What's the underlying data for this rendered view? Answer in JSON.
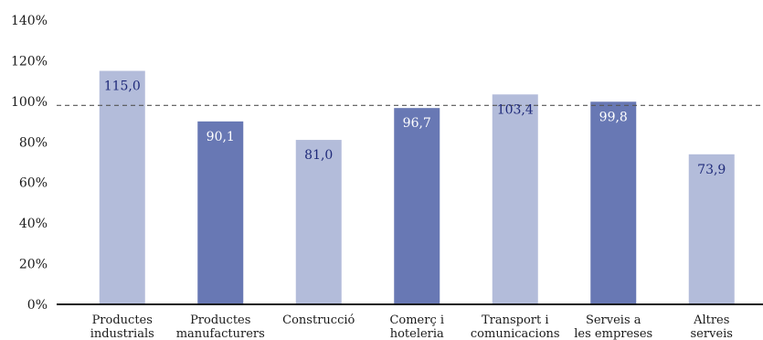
{
  "chart_data": {
    "type": "bar",
    "categories": [
      [
        "Productes",
        "industrials"
      ],
      [
        "Productes",
        "manufacturers"
      ],
      [
        "Construcció"
      ],
      [
        "Comerç i",
        "hoteleria"
      ],
      [
        "Transport i",
        "comunicacions"
      ],
      [
        "Serveis a",
        "les empreses"
      ],
      [
        "Altres",
        "serveis"
      ]
    ],
    "values": [
      115.0,
      90.1,
      81.0,
      96.7,
      103.4,
      99.8,
      73.9
    ],
    "value_labels": [
      "115,0",
      "90,1",
      "81,0",
      "96,7",
      "103,4",
      "99,8",
      "73,9"
    ],
    "yticks": [
      "0%",
      "20%",
      "40%",
      "60%",
      "80%",
      "100%",
      "120%",
      "140%"
    ],
    "ylim": [
      0,
      140
    ],
    "reference_line": 98,
    "grid": false,
    "legend": "none",
    "colors": {
      "light_bar": "#b3bcda",
      "dark_bar": "#6878b4",
      "label_on_light": "#1f2a7a",
      "label_on_dark": "#ffffff",
      "axis": "#1a1a1a",
      "reference": "#555555"
    }
  }
}
